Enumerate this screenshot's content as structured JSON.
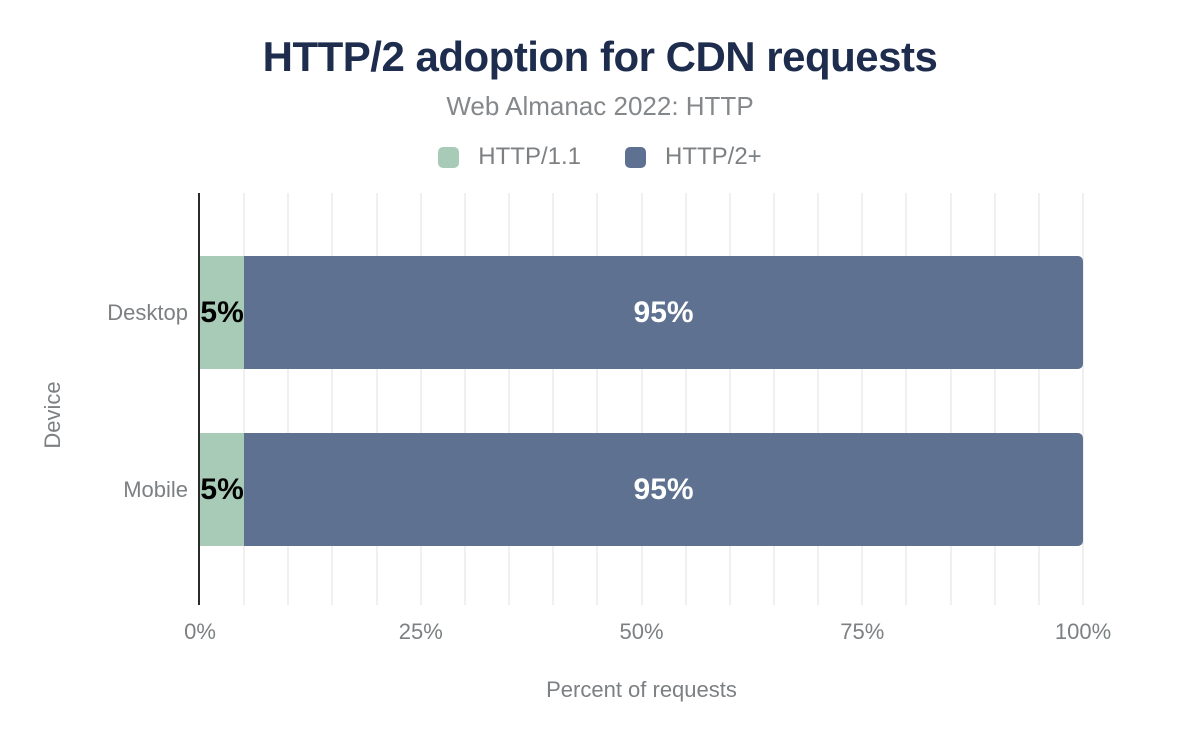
{
  "chart_data": {
    "type": "bar",
    "orientation": "horizontal",
    "stacked": true,
    "title": "HTTP/2 adoption for CDN requests",
    "subtitle": "Web Almanac 2022: HTTP",
    "categories": [
      "Desktop",
      "Mobile"
    ],
    "series": [
      {
        "name": "HTTP/1.1",
        "color": "#a8cbb8",
        "label_text_color": "#000000",
        "values": [
          5,
          5
        ],
        "data_labels": [
          "5%",
          "5%"
        ]
      },
      {
        "name": "HTTP/2+",
        "color": "#5f7190",
        "label_text_color": "#ffffff",
        "values": [
          95,
          95
        ],
        "data_labels": [
          "95%",
          "95%"
        ]
      }
    ],
    "xlabel": "Percent of requests",
    "ylabel": "Device",
    "xlim": [
      0,
      100
    ],
    "x_ticks": [
      {
        "value": 0,
        "label": "0%"
      },
      {
        "value": 25,
        "label": "25%"
      },
      {
        "value": 50,
        "label": "50%"
      },
      {
        "value": 75,
        "label": "75%"
      },
      {
        "value": 100,
        "label": "100%"
      }
    ],
    "grid": {
      "show": true,
      "step": 5,
      "color": "#f0f0f0"
    },
    "legend_position": "top",
    "colors": {
      "title_text": "#1e2d4d",
      "secondary_text": "#7d8083",
      "axis_line": "#2b2b2b"
    }
  }
}
